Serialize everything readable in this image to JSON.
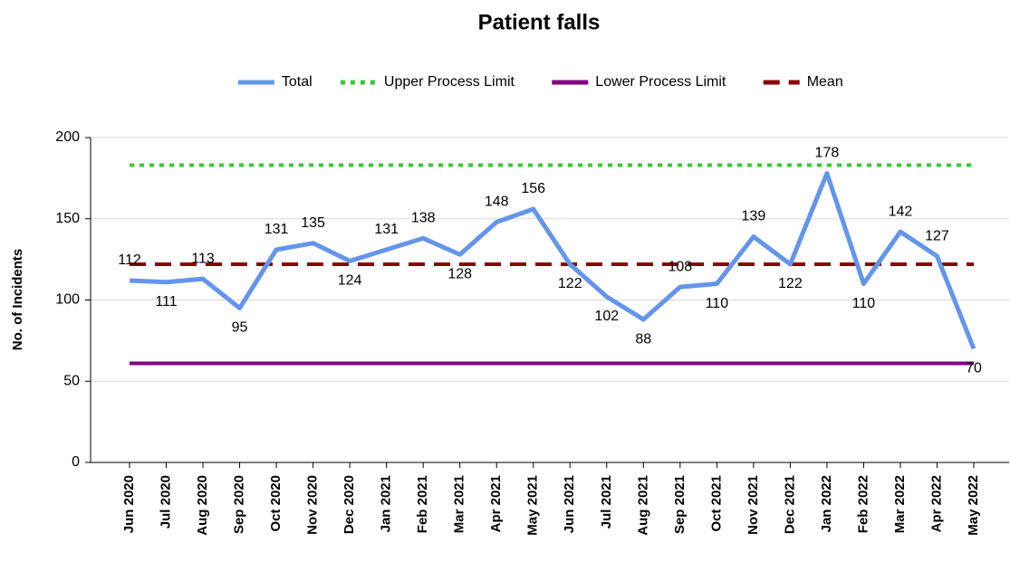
{
  "chart_data": {
    "type": "line",
    "title": "Patient falls",
    "y_label": "No. of Incidents",
    "categories": [
      "Jun 2020",
      "Jul 2020",
      "Aug 2020",
      "Sep 2020",
      "Oct 2020",
      "Nov 2020",
      "Dec 2020",
      "Jan 2021",
      "Feb 2021",
      "Mar 2021",
      "Apr 2021",
      "May 2021",
      "Jun 2021",
      "Jul 2021",
      "Aug 2021",
      "Sep 2021",
      "Oct 2021",
      "Nov 2021",
      "Dec 2021",
      "Jan 2022",
      "Feb 2022",
      "Mar 2022",
      "Apr 2022",
      "May 2022"
    ],
    "series": [
      {
        "name": "Total",
        "color": "#6495ed",
        "style": "solid",
        "data_labels": true,
        "values": [
          112,
          111,
          113,
          95,
          131,
          135,
          124,
          131,
          138,
          128,
          148,
          156,
          122,
          102,
          88,
          108,
          110,
          139,
          122,
          178,
          110,
          142,
          127,
          70
        ]
      },
      {
        "name": "Upper Process Limit",
        "color": "#33cc33",
        "style": "dotted",
        "values": [
          183,
          183,
          183,
          183,
          183,
          183,
          183,
          183,
          183,
          183,
          183,
          183,
          183,
          183,
          183,
          183,
          183,
          183,
          183,
          183,
          183,
          183,
          183,
          183
        ]
      },
      {
        "name": "Lower Process Limit",
        "color": "#800080",
        "style": "solid",
        "values": [
          61,
          61,
          61,
          61,
          61,
          61,
          61,
          61,
          61,
          61,
          61,
          61,
          61,
          61,
          61,
          61,
          61,
          61,
          61,
          61,
          61,
          61,
          61,
          61
        ]
      },
      {
        "name": "Mean",
        "color": "#8b0000",
        "style": "dashed",
        "values": [
          122,
          122,
          122,
          122,
          122,
          122,
          122,
          122,
          122,
          122,
          122,
          122,
          122,
          122,
          122,
          122,
          122,
          122,
          122,
          122,
          122,
          122,
          122,
          122
        ]
      }
    ],
    "ylim": [
      0,
      200
    ],
    "yticks": [
      0,
      50,
      100,
      150,
      200
    ],
    "grid": true,
    "legend": "top"
  }
}
